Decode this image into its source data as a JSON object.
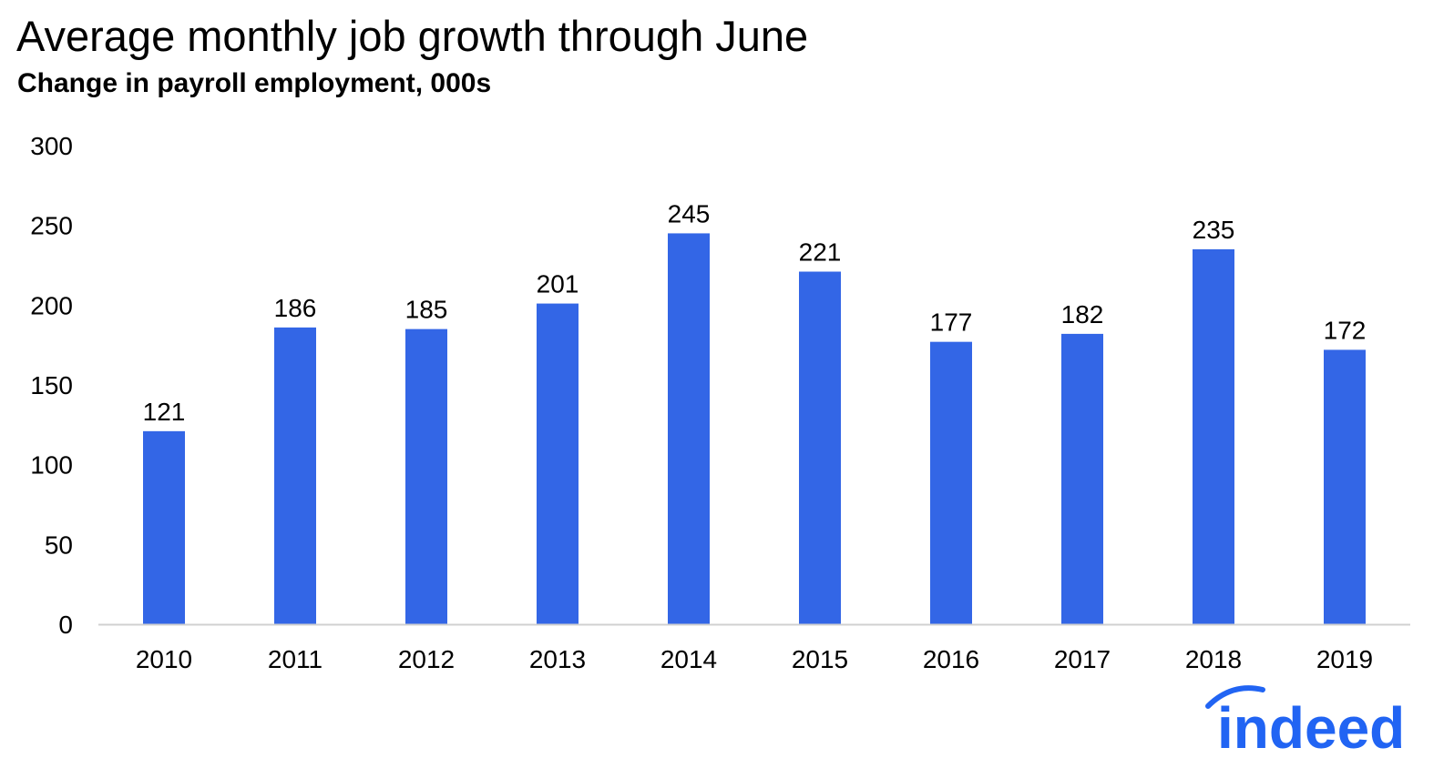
{
  "chart_data": {
    "type": "bar",
    "title": "Average monthly job growth through June",
    "subtitle": "Change in payroll employment, 000s",
    "xlabel": "",
    "ylabel": "",
    "categories": [
      "2010",
      "2011",
      "2012",
      "2013",
      "2014",
      "2015",
      "2016",
      "2017",
      "2018",
      "2019"
    ],
    "values": [
      121,
      186,
      185,
      201,
      245,
      221,
      177,
      182,
      235,
      172
    ],
    "ylim": [
      0,
      300
    ],
    "yticks": [
      0,
      50,
      100,
      150,
      200,
      250,
      300
    ],
    "grid": false,
    "legend": "none",
    "data_labels": true,
    "bar_color": "#3366e6",
    "axis_color": "#d0d0d0"
  },
  "logo": {
    "text": "indeed",
    "color": "#2164f3"
  }
}
